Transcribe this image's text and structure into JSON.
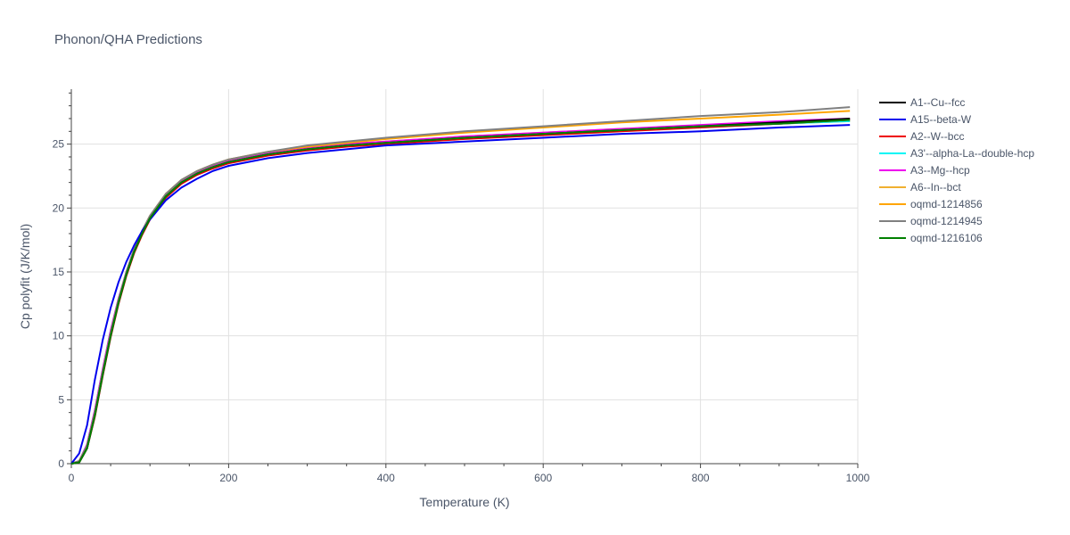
{
  "chart_data": {
    "type": "line",
    "title": "Phonon/QHA Predictions",
    "xlabel": "Temperature (K)",
    "ylabel": "Cp polyfit (J/K/mol)",
    "xlim": [
      0,
      1000
    ],
    "ylim": [
      0,
      29.3
    ],
    "xticks": [
      0,
      200,
      400,
      600,
      800,
      1000
    ],
    "yticks": [
      0,
      5,
      10,
      15,
      20,
      25
    ],
    "grid": true,
    "legend_position": "top-right",
    "x": [
      0,
      10,
      20,
      30,
      40,
      50,
      60,
      70,
      80,
      90,
      100,
      120,
      140,
      160,
      180,
      200,
      250,
      300,
      350,
      400,
      500,
      600,
      700,
      800,
      900,
      990
    ],
    "series": [
      {
        "name": "A1--Cu--fcc",
        "color": "#000000",
        "values": [
          0,
          0.1,
          1.2,
          3.8,
          7.0,
          10.0,
          12.6,
          14.8,
          16.6,
          18.0,
          19.2,
          20.9,
          22.0,
          22.7,
          23.2,
          23.6,
          24.2,
          24.6,
          24.9,
          25.1,
          25.5,
          25.8,
          26.1,
          26.4,
          26.7,
          27.0
        ]
      },
      {
        "name": "A15--beta-W",
        "color": "#0000ee",
        "values": [
          0,
          0.8,
          3.0,
          6.6,
          9.7,
          12.2,
          14.2,
          15.8,
          17.1,
          18.2,
          19.1,
          20.6,
          21.6,
          22.3,
          22.9,
          23.3,
          23.9,
          24.3,
          24.6,
          24.9,
          25.2,
          25.5,
          25.8,
          26.0,
          26.3,
          26.5
        ]
      },
      {
        "name": "A2--W--bcc",
        "color": "#ee0000",
        "values": [
          0,
          0.1,
          1.2,
          3.7,
          6.9,
          9.9,
          12.5,
          14.7,
          16.5,
          17.9,
          19.1,
          20.8,
          21.9,
          22.6,
          23.1,
          23.5,
          24.1,
          24.5,
          24.8,
          25.0,
          25.4,
          25.7,
          26.0,
          26.3,
          26.6,
          26.9
        ]
      },
      {
        "name": "A3'--alpha-La--double-hcp",
        "color": "#00f5f5",
        "values": [
          0,
          0.2,
          1.5,
          4.2,
          7.4,
          10.4,
          12.9,
          15.0,
          16.8,
          18.2,
          19.3,
          21.0,
          22.1,
          22.8,
          23.3,
          23.6,
          24.2,
          24.6,
          24.9,
          25.1,
          25.5,
          25.8,
          26.1,
          26.3,
          26.6,
          26.8
        ]
      },
      {
        "name": "A3--Mg--hcp",
        "color": "#ee00ee",
        "values": [
          0,
          0.2,
          1.5,
          4.2,
          7.4,
          10.4,
          12.9,
          15.0,
          16.8,
          18.2,
          19.3,
          21.0,
          22.1,
          22.8,
          23.3,
          23.7,
          24.3,
          24.7,
          25.0,
          25.2,
          25.6,
          25.9,
          26.2,
          26.5,
          26.8,
          27.0
        ]
      },
      {
        "name": "A6--In--bct",
        "color": "#f0b030",
        "values": [
          0,
          0.2,
          1.5,
          4.2,
          7.4,
          10.4,
          12.9,
          15.0,
          16.8,
          18.2,
          19.3,
          21.0,
          22.1,
          22.8,
          23.3,
          23.7,
          24.3,
          24.7,
          25.0,
          25.2,
          25.6,
          25.9,
          26.2,
          26.4,
          26.6,
          26.8
        ]
      },
      {
        "name": "oqmd-1214856",
        "color": "#ffa500",
        "values": [
          0,
          0.2,
          1.4,
          4.0,
          7.2,
          10.2,
          12.8,
          15.0,
          16.8,
          18.2,
          19.4,
          21.1,
          22.2,
          22.9,
          23.4,
          23.8,
          24.4,
          24.8,
          25.1,
          25.4,
          25.9,
          26.3,
          26.7,
          27.0,
          27.3,
          27.6
        ]
      },
      {
        "name": "oqmd-1214945",
        "color": "#808080",
        "values": [
          0,
          0.2,
          1.4,
          4.0,
          7.2,
          10.2,
          12.8,
          15.0,
          16.8,
          18.2,
          19.4,
          21.1,
          22.2,
          22.9,
          23.4,
          23.8,
          24.4,
          24.9,
          25.2,
          25.5,
          26.0,
          26.4,
          26.8,
          27.2,
          27.5,
          27.9
        ]
      },
      {
        "name": "oqmd-1216106",
        "color": "#008000",
        "values": [
          0,
          0.1,
          1.2,
          3.8,
          7.0,
          10.0,
          12.6,
          14.8,
          16.6,
          18.0,
          19.2,
          20.9,
          22.0,
          22.7,
          23.2,
          23.6,
          24.2,
          24.6,
          24.9,
          25.1,
          25.5,
          25.8,
          26.1,
          26.4,
          26.6,
          26.9
        ]
      }
    ]
  }
}
